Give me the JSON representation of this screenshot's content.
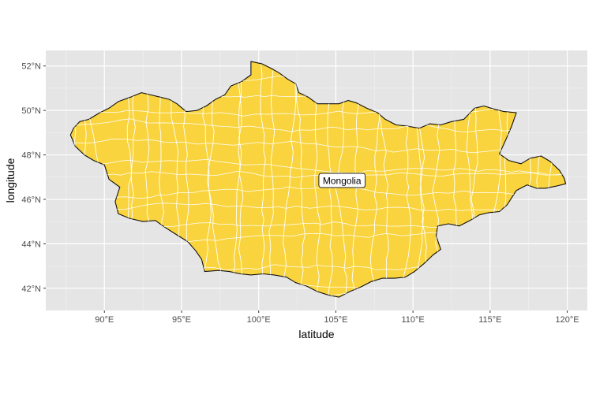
{
  "chart_data": {
    "type": "map",
    "title": "",
    "xlabel": "latitude",
    "ylabel": "longitude",
    "xlim": [
      86.2,
      121.3
    ],
    "ylim": [
      41.0,
      52.7
    ],
    "x_ticks": [
      {
        "value": 90,
        "label": "90°E"
      },
      {
        "value": 95,
        "label": "95°E"
      },
      {
        "value": 100,
        "label": "100°E"
      },
      {
        "value": 105,
        "label": "105°E"
      },
      {
        "value": 110,
        "label": "110°E"
      },
      {
        "value": 115,
        "label": "115°E"
      },
      {
        "value": 120,
        "label": "120°E"
      }
    ],
    "y_ticks": [
      {
        "value": 42,
        "label": "42°N"
      },
      {
        "value": 44,
        "label": "44°N"
      },
      {
        "value": 46,
        "label": "46°N"
      },
      {
        "value": 48,
        "label": "48°N"
      },
      {
        "value": 50,
        "label": "50°N"
      },
      {
        "value": 52,
        "label": "52°N"
      }
    ],
    "grid": true,
    "region": {
      "name": "Mongolia",
      "fill": "#f9d43e",
      "outline": [
        [
          88.0,
          49.2
        ],
        [
          88.4,
          49.5
        ],
        [
          89.0,
          49.6
        ],
        [
          89.7,
          49.9
        ],
        [
          90.3,
          50.1
        ],
        [
          90.9,
          50.4
        ],
        [
          91.7,
          50.6
        ],
        [
          92.4,
          50.8
        ],
        [
          93.0,
          50.7
        ],
        [
          93.6,
          50.6
        ],
        [
          94.2,
          50.5
        ],
        [
          94.7,
          50.3
        ],
        [
          95.3,
          49.95
        ],
        [
          96.0,
          50.0
        ],
        [
          96.6,
          50.2
        ],
        [
          97.2,
          50.5
        ],
        [
          97.8,
          50.7
        ],
        [
          98.2,
          51.1
        ],
        [
          98.9,
          51.3
        ],
        [
          99.5,
          51.6
        ],
        [
          99.5,
          52.2
        ],
        [
          100.2,
          52.1
        ],
        [
          100.8,
          51.9
        ],
        [
          101.3,
          51.7
        ],
        [
          101.9,
          51.4
        ],
        [
          102.4,
          51.2
        ],
        [
          102.6,
          50.8
        ],
        [
          103.2,
          50.6
        ],
        [
          103.8,
          50.3
        ],
        [
          104.5,
          50.3
        ],
        [
          105.2,
          50.3
        ],
        [
          105.8,
          50.45
        ],
        [
          106.3,
          50.35
        ],
        [
          107.0,
          50.1
        ],
        [
          107.7,
          49.9
        ],
        [
          108.2,
          49.6
        ],
        [
          108.9,
          49.35
        ],
        [
          109.6,
          49.3
        ],
        [
          110.4,
          49.2
        ],
        [
          111.1,
          49.4
        ],
        [
          111.8,
          49.35
        ],
        [
          112.5,
          49.5
        ],
        [
          113.3,
          49.6
        ],
        [
          114.0,
          50.1
        ],
        [
          114.6,
          50.2
        ],
        [
          115.3,
          50.05
        ],
        [
          115.9,
          49.95
        ],
        [
          116.7,
          49.9
        ],
        [
          116.4,
          49.3
        ],
        [
          116.0,
          48.65
        ],
        [
          115.6,
          48.05
        ],
        [
          116.2,
          47.75
        ],
        [
          117.0,
          47.6
        ],
        [
          117.6,
          47.85
        ],
        [
          118.3,
          47.95
        ],
        [
          118.9,
          47.7
        ],
        [
          119.5,
          47.3
        ],
        [
          119.8,
          46.95
        ],
        [
          119.9,
          46.7
        ],
        [
          119.3,
          46.6
        ],
        [
          118.6,
          46.5
        ],
        [
          118.0,
          46.5
        ],
        [
          117.4,
          46.65
        ],
        [
          116.7,
          46.4
        ],
        [
          116.1,
          45.75
        ],
        [
          115.6,
          45.45
        ],
        [
          114.9,
          45.4
        ],
        [
          114.3,
          45.3
        ],
        [
          113.7,
          45.05
        ],
        [
          113.0,
          44.8
        ],
        [
          112.3,
          44.9
        ],
        [
          111.6,
          44.8
        ],
        [
          111.5,
          44.35
        ],
        [
          111.8,
          43.75
        ],
        [
          111.3,
          43.5
        ],
        [
          110.7,
          43.1
        ],
        [
          110.1,
          42.75
        ],
        [
          109.5,
          42.5
        ],
        [
          108.8,
          42.45
        ],
        [
          108.0,
          42.45
        ],
        [
          107.3,
          42.3
        ],
        [
          106.6,
          42.05
        ],
        [
          105.9,
          41.85
        ],
        [
          105.2,
          41.6
        ],
        [
          104.5,
          41.7
        ],
        [
          103.8,
          41.85
        ],
        [
          103.1,
          42.1
        ],
        [
          102.4,
          42.25
        ],
        [
          101.8,
          42.5
        ],
        [
          101.0,
          42.6
        ],
        [
          100.3,
          42.65
        ],
        [
          99.5,
          42.6
        ],
        [
          98.8,
          42.65
        ],
        [
          98.1,
          42.75
        ],
        [
          97.4,
          42.8
        ],
        [
          96.5,
          42.75
        ],
        [
          96.3,
          43.3
        ],
        [
          95.9,
          43.7
        ],
        [
          95.4,
          44.1
        ],
        [
          94.7,
          44.4
        ],
        [
          93.9,
          44.75
        ],
        [
          93.3,
          45.05
        ],
        [
          92.5,
          45.0
        ],
        [
          91.6,
          45.15
        ],
        [
          90.9,
          45.35
        ],
        [
          90.7,
          45.9
        ],
        [
          91.0,
          46.55
        ],
        [
          90.3,
          46.9
        ],
        [
          90.0,
          47.55
        ],
        [
          89.3,
          47.75
        ],
        [
          88.7,
          48.0
        ],
        [
          88.1,
          48.4
        ],
        [
          87.8,
          48.9
        ]
      ]
    },
    "annotations": [
      {
        "text": "Mongolia",
        "x": 105.4,
        "y": 46.85
      }
    ]
  },
  "colors": {
    "panel_background": "#e5e5e5",
    "grid_major": "#ffffff",
    "region_fill": "#f9d43e",
    "region_border": "#111111",
    "district_lines": "#ffffff",
    "axis_text": "#4d4d4d",
    "axis_title": "#000000"
  }
}
